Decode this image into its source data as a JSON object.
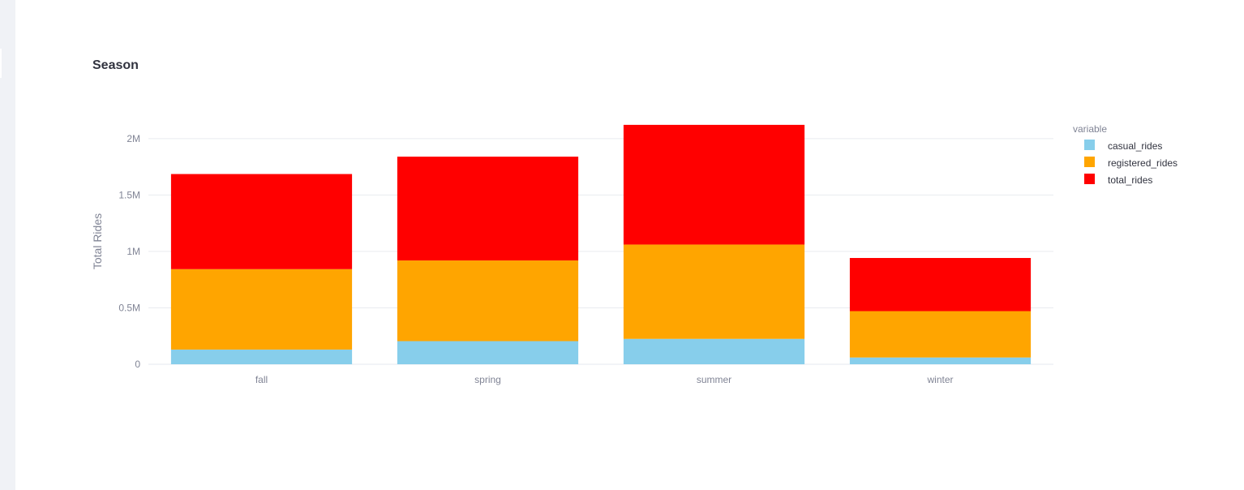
{
  "sidebar": {
    "background": "#f0f2f6"
  },
  "chart_data": {
    "type": "bar",
    "barmode": "stack",
    "title": "Season",
    "xlabel": "",
    "ylabel": "Total Rides",
    "categories": [
      "fall",
      "spring",
      "summer",
      "winter"
    ],
    "series": [
      {
        "name": "casual_rides",
        "color": "#87ceeb",
        "values": [
          130000,
          205000,
          225000,
          60000
        ]
      },
      {
        "name": "registered_rides",
        "color": "#ffa500",
        "values": [
          713000,
          715000,
          836000,
          411000
        ]
      },
      {
        "name": "total_rides",
        "color": "#ff0000",
        "values": [
          843000,
          920000,
          1061000,
          471000
        ]
      }
    ],
    "ylim": [
      0,
      2150000
    ],
    "yticks": [
      0,
      500000,
      1000000,
      1500000,
      2000000
    ],
    "ytick_labels": [
      "0",
      "0.5M",
      "1M",
      "1.5M",
      "2M"
    ],
    "grid": true,
    "legend": {
      "title": "variable",
      "position": "right"
    }
  }
}
